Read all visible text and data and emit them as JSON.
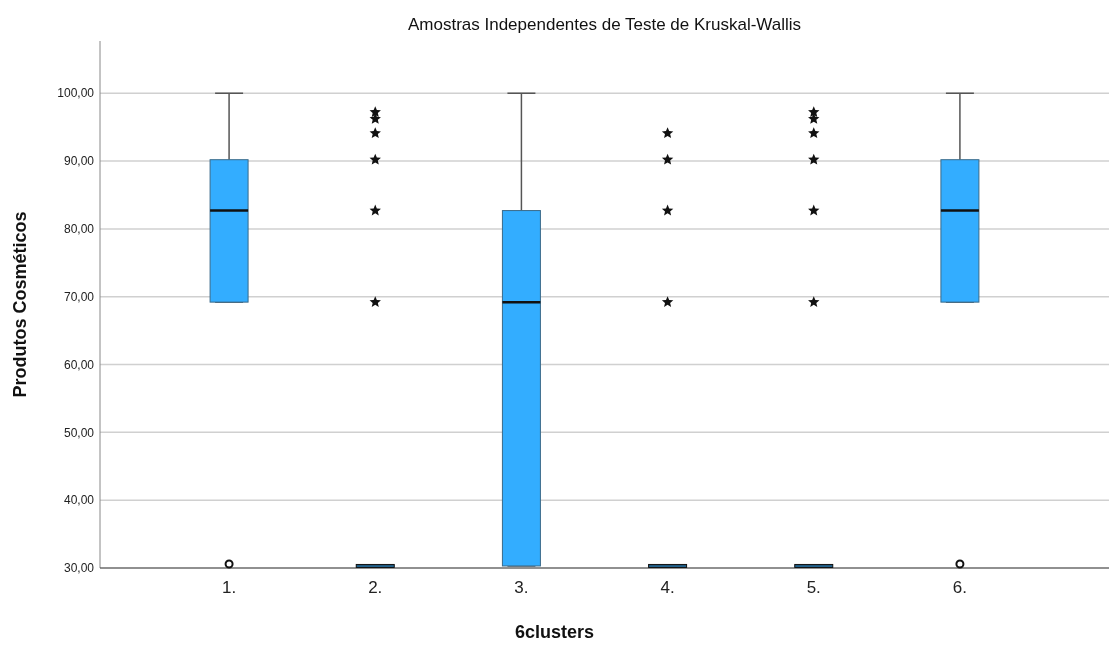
{
  "chart_data": {
    "type": "box",
    "title": "Amostras Independentes de Teste de Kruskal-Wallis",
    "xlabel": "6clusters",
    "ylabel": "Produtos Cosméticos",
    "categories": [
      "1.",
      "2.",
      "3.",
      "4.",
      "5.",
      "6."
    ],
    "color": "#33adff",
    "boxes": [
      {
        "low": 69.2,
        "q1": 69.2,
        "median": 82.7,
        "q3": 90.2,
        "high": 100,
        "outliers": [
          30.3
        ]
      },
      {
        "low": 30.3,
        "q1": 30.3,
        "median": 30.3,
        "q3": 30.3,
        "high": 30.3,
        "outliers": [
          69.2,
          82.7,
          90.2,
          94.1,
          96.2,
          97.2
        ]
      },
      {
        "low": 30.3,
        "q1": 30.3,
        "median": 69.2,
        "q3": 82.7,
        "high": 100
      },
      {
        "low": 30.3,
        "q1": 30.3,
        "median": 30.3,
        "q3": 30.3,
        "high": 30.3,
        "outliers": [
          69.2,
          82.7,
          90.2,
          94.1
        ]
      },
      {
        "low": 30.3,
        "q1": 30.3,
        "median": 30.3,
        "q3": 30.3,
        "high": 30.3,
        "outliers": [
          69.2,
          82.7,
          90.2,
          94.1,
          96.2,
          97.2
        ]
      },
      {
        "low": 69.2,
        "q1": 69.2,
        "median": 82.7,
        "q3": 90.2,
        "high": 100,
        "outliers": [
          30.3
        ]
      }
    ],
    "ylim": [
      30,
      107.7
    ],
    "yticks": [
      {
        "value": 30,
        "label": "30,00"
      },
      {
        "value": 40,
        "label": "40,00"
      },
      {
        "value": 50,
        "label": "50,00"
      },
      {
        "value": 60,
        "label": "60,00"
      },
      {
        "value": 70,
        "label": "70,00"
      },
      {
        "value": 80,
        "label": "80,00"
      },
      {
        "value": 90,
        "label": "90,00"
      },
      {
        "value": 100,
        "label": "100,00"
      }
    ],
    "grid": "y"
  }
}
